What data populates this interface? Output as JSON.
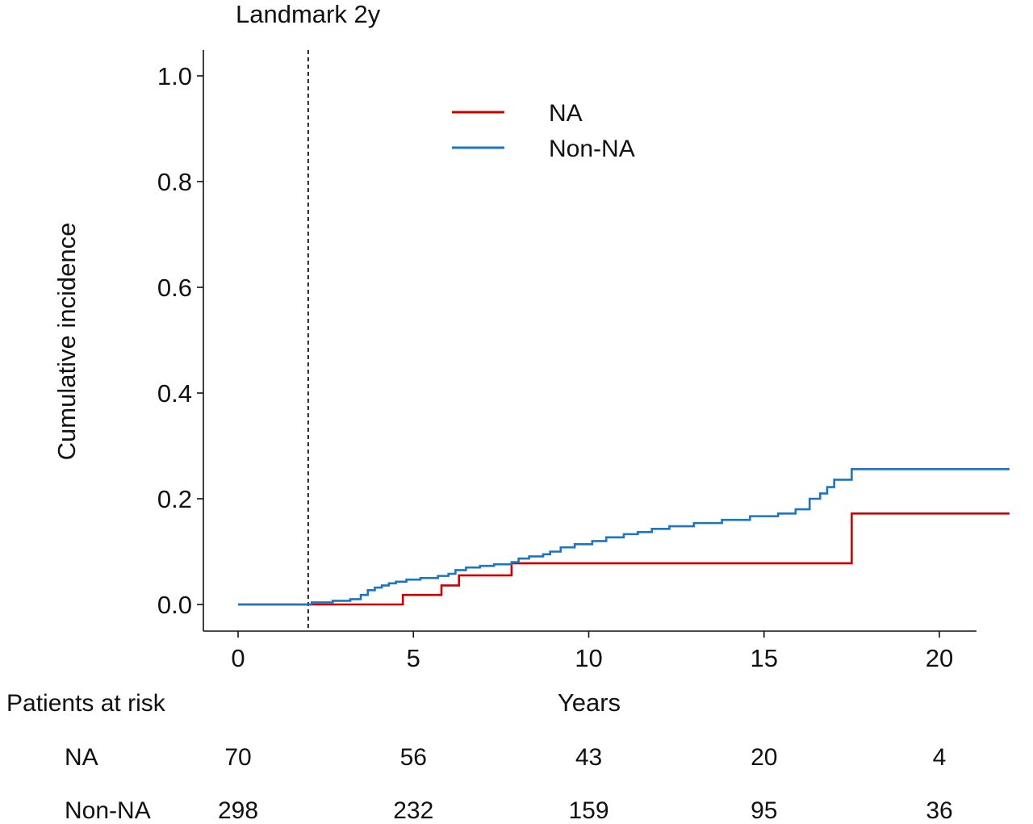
{
  "chart_data": {
    "type": "line",
    "subtype": "step cumulative incidence",
    "landmark_label": "Landmark 2y",
    "landmark_x": 2,
    "xlabel": "Years",
    "ylabel": "Cumulative incidence",
    "xlim": [
      -2,
      22
    ],
    "ylim": [
      -0.05,
      1.05
    ],
    "x_ticks": [
      0,
      5,
      10,
      15,
      20
    ],
    "x_tick_labels": [
      "0",
      "5",
      "10",
      "15",
      "20"
    ],
    "y_ticks": [
      0.0,
      0.2,
      0.4,
      0.6,
      0.8,
      1.0
    ],
    "y_tick_labels": [
      "0.0",
      "0.2",
      "0.4",
      "0.6",
      "0.8",
      "1.0"
    ],
    "grid": false,
    "legend_position": "top-center",
    "series": [
      {
        "name": "NA",
        "color": "#cc0000",
        "steps": [
          [
            0,
            0.0
          ],
          [
            4.7,
            0.018
          ],
          [
            5.8,
            0.036
          ],
          [
            6.3,
            0.055
          ],
          [
            7.8,
            0.078
          ],
          [
            17.5,
            0.172
          ],
          [
            22,
            0.172
          ]
        ]
      },
      {
        "name": "Non-NA",
        "color": "#1a75c2",
        "steps": [
          [
            0,
            0.0
          ],
          [
            2.1,
            0.004
          ],
          [
            2.7,
            0.007
          ],
          [
            3.2,
            0.01
          ],
          [
            3.5,
            0.018
          ],
          [
            3.7,
            0.027
          ],
          [
            3.9,
            0.032
          ],
          [
            4.1,
            0.036
          ],
          [
            4.3,
            0.04
          ],
          [
            4.5,
            0.043
          ],
          [
            4.8,
            0.047
          ],
          [
            5.2,
            0.05
          ],
          [
            5.7,
            0.054
          ],
          [
            6.0,
            0.058
          ],
          [
            6.2,
            0.065
          ],
          [
            6.5,
            0.07
          ],
          [
            6.9,
            0.073
          ],
          [
            7.3,
            0.076
          ],
          [
            7.8,
            0.08
          ],
          [
            8.0,
            0.087
          ],
          [
            8.3,
            0.091
          ],
          [
            8.7,
            0.095
          ],
          [
            8.9,
            0.1
          ],
          [
            9.2,
            0.108
          ],
          [
            9.6,
            0.114
          ],
          [
            10.1,
            0.12
          ],
          [
            10.5,
            0.127
          ],
          [
            11.0,
            0.133
          ],
          [
            11.4,
            0.137
          ],
          [
            11.8,
            0.143
          ],
          [
            12.3,
            0.148
          ],
          [
            13.0,
            0.154
          ],
          [
            13.8,
            0.16
          ],
          [
            14.6,
            0.167
          ],
          [
            15.4,
            0.172
          ],
          [
            15.9,
            0.18
          ],
          [
            16.3,
            0.2
          ],
          [
            16.6,
            0.21
          ],
          [
            16.8,
            0.222
          ],
          [
            17.0,
            0.236
          ],
          [
            17.5,
            0.256
          ],
          [
            22,
            0.256
          ]
        ]
      }
    ],
    "risk_table": {
      "title": "Patients at risk",
      "times": [
        0,
        5,
        10,
        15,
        20
      ],
      "rows": [
        {
          "label": "NA",
          "values": [
            "70",
            "56",
            "43",
            "20",
            "4"
          ]
        },
        {
          "label": "Non-NA",
          "values": [
            "298",
            "232",
            "159",
            "95",
            "36"
          ]
        }
      ]
    }
  }
}
